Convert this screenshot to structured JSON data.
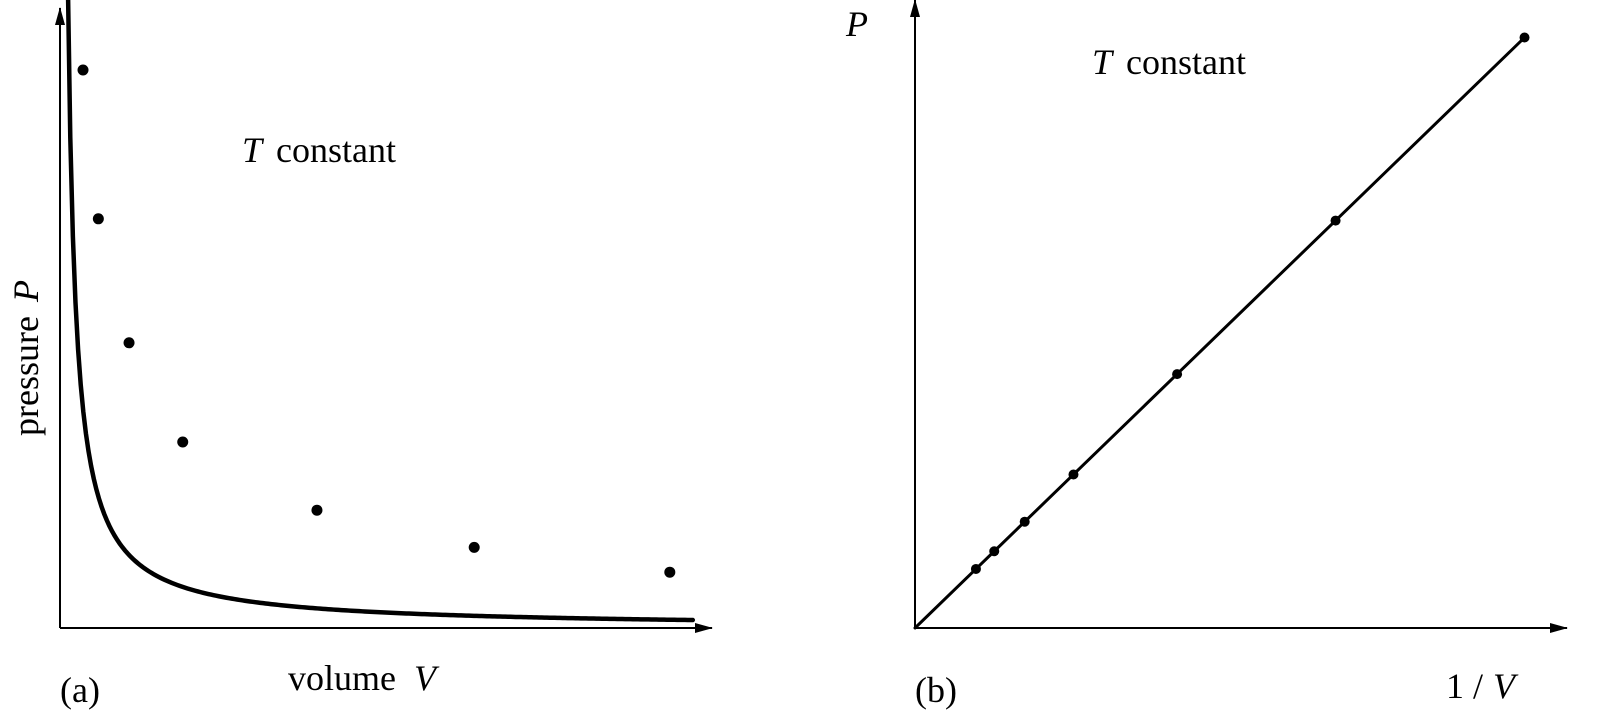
{
  "chart_data": [
    {
      "type": "line",
      "panel_label": "(a)",
      "annotation": "constant",
      "annotation_symbol": "T",
      "xlabel": "volume",
      "xlabel_symbol": "V",
      "ylabel": "pressure",
      "ylabel_symbol": "P",
      "xlim": [
        0,
        8.5
      ],
      "ylim": [
        0,
        1.0
      ],
      "curve_constant": 0.106,
      "curve_x_start": 0.1,
      "curve_x_end": 8.25,
      "series": [
        {
          "x": [
            0.3,
            0.5,
            0.9,
            1.6,
            3.35,
            5.4,
            7.95
          ],
          "y": [
            0.9,
            0.66,
            0.46,
            0.3,
            0.19,
            0.13,
            0.09
          ]
        }
      ],
      "grid": false,
      "ticks": false
    },
    {
      "type": "line",
      "panel_label": "(b)",
      "annotation": "constant",
      "annotation_symbol": "T",
      "xlabel": "1 /",
      "xlabel_symbol": "V",
      "ylabel": "",
      "ylabel_symbol": "P",
      "xlim": [
        0,
        1.05
      ],
      "ylim": [
        0,
        1.05
      ],
      "series": [
        {
          "x": [
            0.0,
            0.1,
            0.13,
            0.18,
            0.26,
            0.43,
            0.69,
            1.0
          ],
          "y": [
            0.0,
            0.1,
            0.13,
            0.18,
            0.26,
            0.43,
            0.69,
            1.0
          ]
        }
      ],
      "show_points_from": 1,
      "grid": false,
      "ticks": false
    }
  ]
}
